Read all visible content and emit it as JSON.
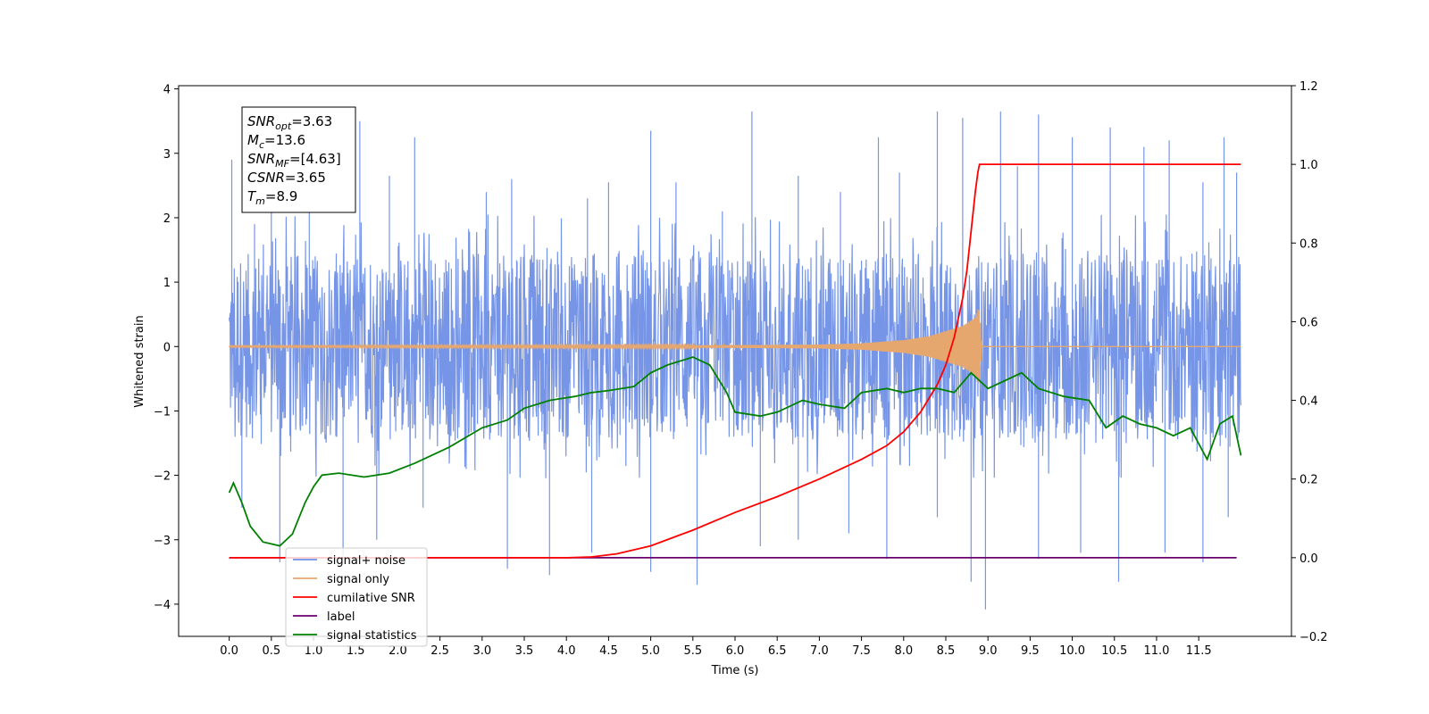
{
  "chart_data": {
    "type": "line",
    "xlabel": "Time (s)",
    "ylabel": "Whitened strain",
    "xlim": [
      -0.6,
      12.6
    ],
    "ylim": [
      -4.5,
      4.05
    ],
    "y2lim": [
      -0.2,
      1.2
    ],
    "xticks": [
      "0.0",
      "0.5",
      "1.0",
      "1.5",
      "2.0",
      "2.5",
      "3.0",
      "3.5",
      "4.0",
      "4.5",
      "5.0",
      "5.5",
      "6.0",
      "6.5",
      "7.0",
      "7.5",
      "8.0",
      "8.5",
      "9.0",
      "9.5",
      "10.0",
      "10.5",
      "11.0",
      "11.5"
    ],
    "yticks": [
      "4",
      "3",
      "2",
      "1",
      "0",
      "−1",
      "−2",
      "−3",
      "−4"
    ],
    "y2ticks": [
      "1.2",
      "1.0",
      "0.8",
      "0.6",
      "0.4",
      "0.2",
      "0.0",
      "−0.2"
    ],
    "grid": false,
    "legend_position": "lower-left",
    "annotation": {
      "lines": [
        {
          "base": "SNR",
          "sub": "opt",
          "value": "=3.63"
        },
        {
          "base": "M",
          "sub": "c",
          "value": "=13.6"
        },
        {
          "base": "SNR",
          "sub": "MF",
          "value": "=[4.63]"
        },
        {
          "base": "CSNR",
          "sub": "",
          "value": "=3.65"
        },
        {
          "base": "T",
          "sub": "m",
          "value": "=8.9"
        }
      ]
    },
    "series": [
      {
        "name": "signal+ noise",
        "color": "#6f8fe6",
        "axis": "left",
        "x_range": [
          0,
          12
        ],
        "band": [
          -1.45,
          1.45
        ],
        "peaks_up": [
          [
            0.03,
            2.9
          ],
          [
            0.3,
            1.9
          ],
          [
            0.5,
            2.3
          ],
          [
            0.95,
            2.75
          ],
          [
            1.55,
            3.5
          ],
          [
            1.9,
            2.65
          ],
          [
            2.2,
            3.25
          ],
          [
            3.05,
            2.4
          ],
          [
            3.35,
            2.6
          ],
          [
            4.25,
            2.3
          ],
          [
            4.5,
            2.55
          ],
          [
            5.0,
            3.35
          ],
          [
            5.3,
            2.55
          ],
          [
            5.85,
            2.1
          ],
          [
            6.2,
            3.65
          ],
          [
            6.75,
            2.65
          ],
          [
            7.25,
            2.4
          ],
          [
            7.7,
            3.25
          ],
          [
            7.95,
            2.7
          ],
          [
            8.4,
            3.65
          ],
          [
            8.7,
            3.55
          ],
          [
            9.15,
            3.65
          ],
          [
            9.35,
            2.8
          ],
          [
            9.6,
            3.6
          ],
          [
            10.0,
            3.25
          ],
          [
            10.45,
            3.4
          ],
          [
            10.85,
            3.1
          ],
          [
            11.15,
            3.2
          ],
          [
            11.55,
            2.55
          ],
          [
            11.8,
            3.25
          ],
          [
            11.95,
            2.7
          ]
        ],
        "peaks_down": [
          [
            0.15,
            -2.5
          ],
          [
            0.6,
            -3.35
          ],
          [
            1.35,
            -3.25
          ],
          [
            1.75,
            -3.0
          ],
          [
            2.3,
            -2.5
          ],
          [
            3.3,
            -3.45
          ],
          [
            3.8,
            -3.55
          ],
          [
            4.3,
            -3.2
          ],
          [
            5.0,
            -3.5
          ],
          [
            5.55,
            -3.7
          ],
          [
            6.3,
            -3.1
          ],
          [
            6.75,
            -3.0
          ],
          [
            7.35,
            -2.9
          ],
          [
            7.8,
            -3.3
          ],
          [
            8.4,
            -2.65
          ],
          [
            8.8,
            -3.65
          ],
          [
            8.97,
            -4.08
          ],
          [
            9.6,
            -3.3
          ],
          [
            10.1,
            -3.2
          ],
          [
            10.55,
            -3.65
          ],
          [
            11.1,
            -3.2
          ],
          [
            11.55,
            -3.35
          ],
          [
            11.85,
            -2.65
          ]
        ]
      },
      {
        "name": "signal only",
        "color": "#e6a76e",
        "axis": "left",
        "x": [
          0,
          6.0,
          7.0,
          7.5,
          8.0,
          8.3,
          8.5,
          8.7,
          8.85,
          8.88,
          8.9,
          8.93
        ],
        "amplitude": [
          0.01,
          0.02,
          0.03,
          0.05,
          0.1,
          0.16,
          0.24,
          0.32,
          0.45,
          0.58,
          0.55,
          0.0
        ]
      },
      {
        "name": "cumilative SNR",
        "color": "#ff0000",
        "axis": "right",
        "x": [
          0,
          4.0,
          4.3,
          4.6,
          5.0,
          5.5,
          6.0,
          6.5,
          7.0,
          7.5,
          7.8,
          8.0,
          8.2,
          8.4,
          8.5,
          8.6,
          8.7,
          8.75,
          8.8,
          8.85,
          8.88,
          8.9,
          12.0
        ],
        "y": [
          0.0,
          0.0,
          0.002,
          0.01,
          0.03,
          0.07,
          0.115,
          0.155,
          0.2,
          0.25,
          0.285,
          0.32,
          0.37,
          0.44,
          0.49,
          0.56,
          0.66,
          0.73,
          0.83,
          0.93,
          0.98,
          1.0,
          1.0
        ]
      },
      {
        "name": "label",
        "color": "#6b0070",
        "axis": "right",
        "x": [
          0,
          11.95
        ],
        "y": [
          0,
          0
        ]
      },
      {
        "name": "signal statistics",
        "color": "#008000",
        "axis": "right",
        "x": [
          0,
          0.05,
          0.15,
          0.25,
          0.4,
          0.6,
          0.75,
          0.9,
          1.0,
          1.1,
          1.3,
          1.6,
          1.9,
          2.2,
          2.6,
          3.0,
          3.3,
          3.5,
          3.8,
          4.1,
          4.3,
          4.5,
          4.8,
          5.0,
          5.2,
          5.5,
          5.7,
          5.9,
          6.0,
          6.3,
          6.5,
          6.8,
          7.0,
          7.3,
          7.5,
          7.8,
          8.0,
          8.2,
          8.4,
          8.6,
          8.8,
          9.0,
          9.2,
          9.4,
          9.6,
          9.9,
          10.2,
          10.4,
          10.6,
          10.8,
          11.0,
          11.2,
          11.4,
          11.6,
          11.75,
          11.9,
          12.0
        ],
        "y": [
          0.165,
          0.19,
          0.14,
          0.08,
          0.04,
          0.03,
          0.06,
          0.14,
          0.18,
          0.21,
          0.215,
          0.205,
          0.215,
          0.24,
          0.28,
          0.33,
          0.35,
          0.38,
          0.4,
          0.41,
          0.42,
          0.425,
          0.435,
          0.47,
          0.49,
          0.51,
          0.49,
          0.42,
          0.37,
          0.36,
          0.37,
          0.4,
          0.39,
          0.38,
          0.42,
          0.43,
          0.42,
          0.43,
          0.43,
          0.42,
          0.47,
          0.43,
          0.45,
          0.47,
          0.43,
          0.41,
          0.4,
          0.33,
          0.36,
          0.34,
          0.33,
          0.31,
          0.33,
          0.25,
          0.34,
          0.36,
          0.26
        ]
      }
    ]
  }
}
